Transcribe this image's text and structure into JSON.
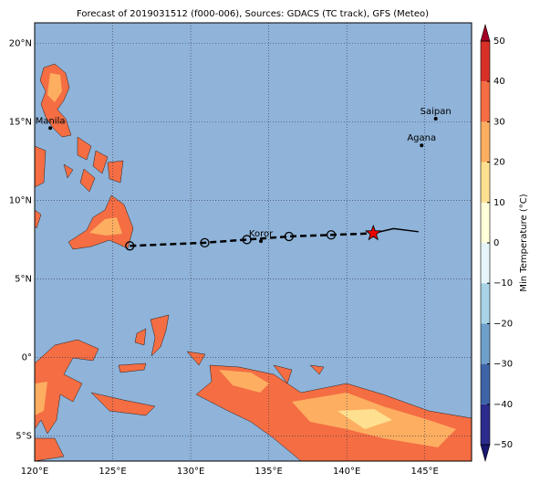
{
  "map": {
    "title": "Forecast of 2019031512 (f000-006), Sources: GDACS (TC track), GFS (Meteo)",
    "xlim": [
      120,
      148
    ],
    "ylim": [
      -6.6,
      21.3
    ],
    "xticks": [
      {
        "value": 120,
        "label": "120°E"
      },
      {
        "value": 125,
        "label": "125°E"
      },
      {
        "value": 130,
        "label": "130°E"
      },
      {
        "value": 135,
        "label": "135°E"
      },
      {
        "value": 140,
        "label": "140°E"
      },
      {
        "value": 145,
        "label": "145°E"
      }
    ],
    "yticks": [
      {
        "value": -5,
        "label": "5°S"
      },
      {
        "value": 0,
        "label": "0°"
      },
      {
        "value": 5,
        "label": "5°N"
      },
      {
        "value": 10,
        "label": "10°N"
      },
      {
        "value": 15,
        "label": "15°N"
      },
      {
        "value": 20,
        "label": "20°N"
      }
    ],
    "ocean_color": "#8fb3d9",
    "cities": [
      {
        "name": "Manila",
        "lon": 121.0,
        "lat": 14.6
      },
      {
        "name": "Koror",
        "lon": 134.5,
        "lat": 7.4
      },
      {
        "name": "Saipan",
        "lon": 145.7,
        "lat": 15.2
      },
      {
        "name": "Agana",
        "lon": 144.8,
        "lat": 13.5
      }
    ],
    "track": {
      "lon": [
        126.1,
        130.9,
        133.6,
        136.3,
        139.0,
        141.7
      ],
      "lat": [
        7.1,
        7.3,
        7.5,
        7.7,
        7.8,
        7.9
      ]
    },
    "past_track": {
      "lon": [
        141.7,
        143.0,
        144.6
      ],
      "lat": [
        7.9,
        8.2,
        8.0
      ]
    },
    "colorbar": {
      "label": "Min Temperature (°C)",
      "lim": [
        -50,
        50
      ],
      "ticks": [
        {
          "value": -50,
          "label": "−50"
        },
        {
          "value": -40,
          "label": "−40"
        },
        {
          "value": -30,
          "label": "−30"
        },
        {
          "value": -20,
          "label": "−20"
        },
        {
          "value": -10,
          "label": "−10"
        },
        0,
        10,
        20,
        30,
        40,
        50
      ],
      "colors": [
        "#2b2c8c",
        "#3e64a8",
        "#6f9fcb",
        "#a9d3e6",
        "#e6f5f9",
        "#ffffd9",
        "#fde08f",
        "#fdae61",
        "#f46d43",
        "#d73027"
      ],
      "under_color": "#191970",
      "over_color": "#a50026"
    }
  }
}
